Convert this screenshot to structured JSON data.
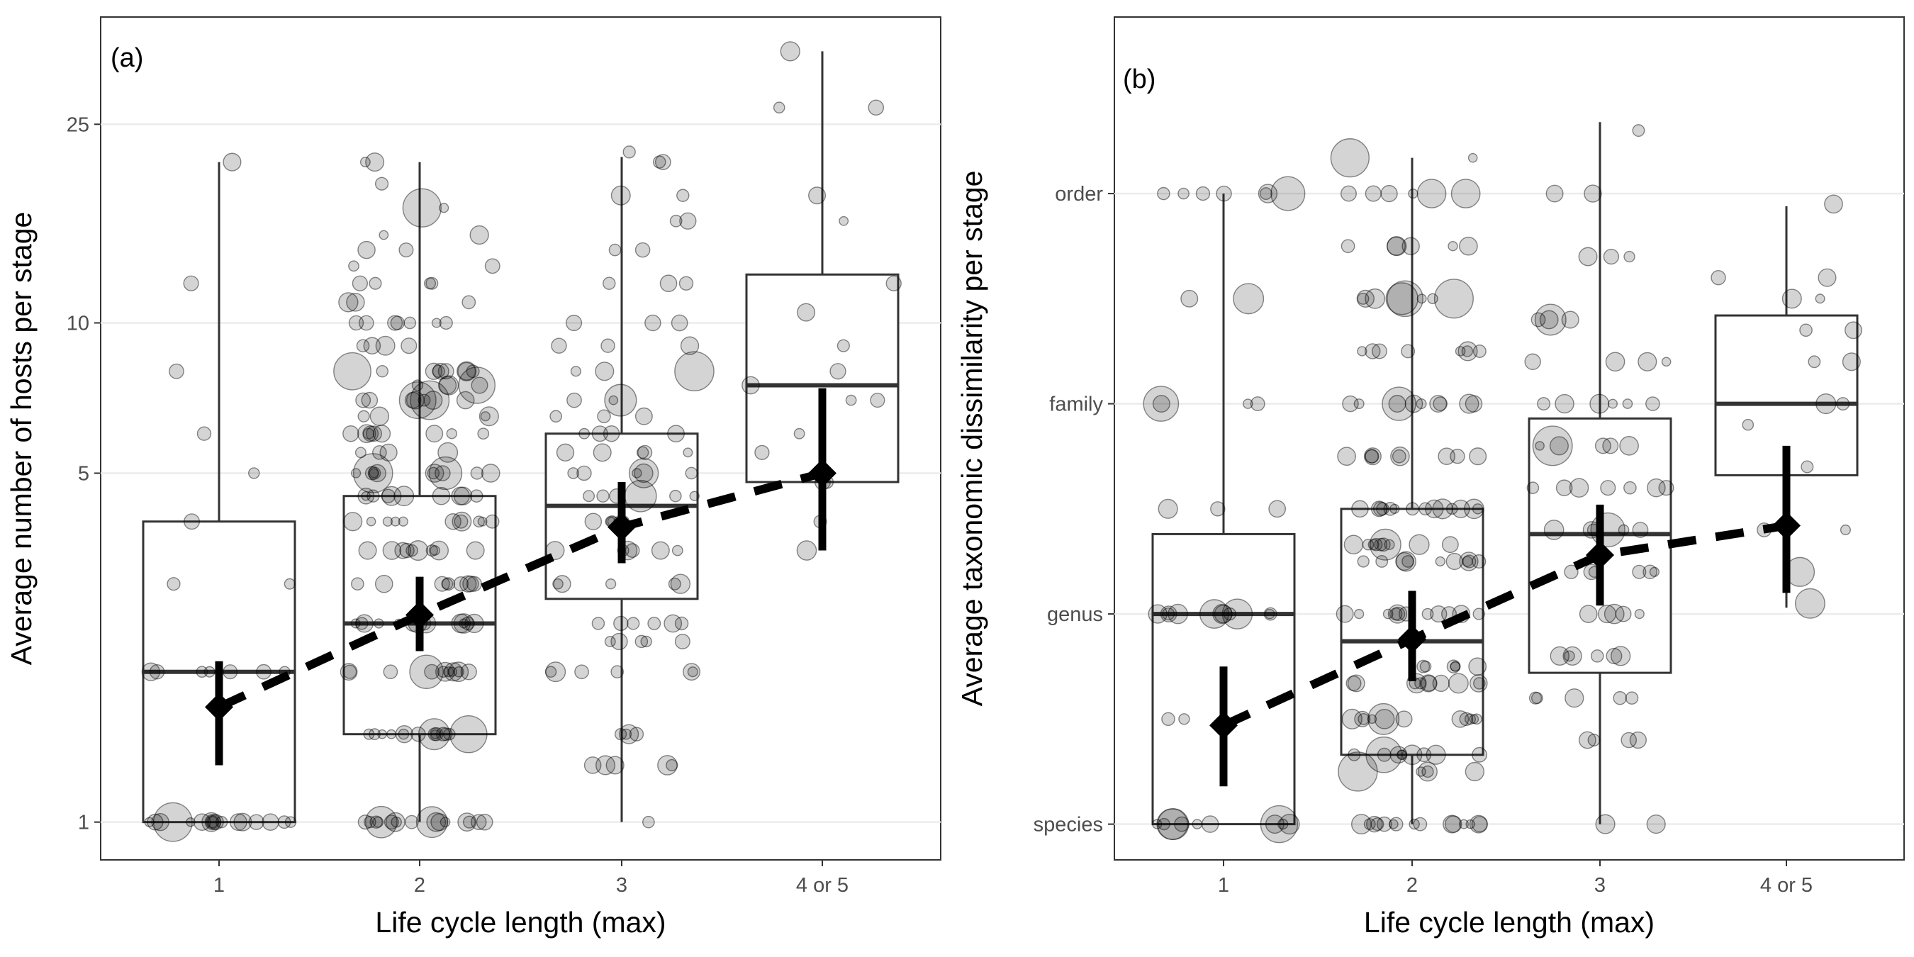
{
  "chart_data": [
    {
      "type": "box",
      "panel_label": "(a)",
      "xlabel": "Life cycle length (max)",
      "ylabel": "Average number of hosts per stage",
      "categories": [
        "1",
        "2",
        "3",
        "4 or 5"
      ],
      "y_scale": "log",
      "ylim": [
        0.84,
        41
      ],
      "y_ticks": [
        {
          "value": 1,
          "label": "1"
        },
        {
          "value": 5,
          "label": "5"
        },
        {
          "value": 10,
          "label": "10"
        },
        {
          "value": 25,
          "label": "25"
        }
      ],
      "grid": "horizontal",
      "boxes": [
        {
          "category": "1",
          "whisker_low": 1,
          "q1": 1,
          "median": 2,
          "q3": 4,
          "whisker_high": 21
        },
        {
          "category": "2",
          "whisker_low": 1,
          "q1": 1.5,
          "median": 2.5,
          "q3": 4.5,
          "whisker_high": 21
        },
        {
          "category": "3",
          "whisker_low": 1,
          "q1": 2.8,
          "median": 4.3,
          "q3": 6,
          "whisker_high": 21.5
        },
        {
          "category": "4 or 5",
          "whisker_low": 3.5,
          "q1": 4.8,
          "median": 7.5,
          "q3": 12.5,
          "whisker_high": 35
        }
      ],
      "trend": {
        "style": "dashed",
        "points": [
          {
            "category": "1",
            "estimate": 1.7,
            "ci_low": 1.3,
            "ci_high": 2.1
          },
          {
            "category": "2",
            "estimate": 2.6,
            "ci_low": 2.2,
            "ci_high": 3.1
          },
          {
            "category": "3",
            "estimate": 3.9,
            "ci_low": 3.3,
            "ci_high": 4.8
          },
          {
            "category": "4 or 5",
            "estimate": 5.0,
            "ci_low": 3.5,
            "ci_high": 7.4
          }
        ]
      },
      "jitter_points": {
        "1": [
          [
            1,
            6
          ],
          [
            1,
            5
          ],
          [
            1,
            4
          ],
          [
            1,
            3
          ],
          [
            2,
            2
          ],
          [
            2,
            3
          ],
          [
            2,
            2
          ],
          [
            3,
            2
          ],
          [
            4,
            1
          ],
          [
            5,
            1
          ],
          [
            6,
            1
          ],
          [
            8,
            1
          ],
          [
            12,
            1
          ],
          [
            21,
            1
          ]
        ],
        "2": [
          [
            1,
            14
          ],
          [
            1,
            3
          ],
          [
            1.5,
            12
          ],
          [
            1.5,
            3
          ],
          [
            2,
            10
          ],
          [
            2,
            3
          ],
          [
            2.5,
            14
          ],
          [
            3,
            9
          ],
          [
            3.5,
            10
          ],
          [
            4,
            11
          ],
          [
            4.5,
            10
          ],
          [
            5,
            10
          ],
          [
            5,
            2
          ],
          [
            5.5,
            4
          ],
          [
            6,
            7
          ],
          [
            6,
            2
          ],
          [
            6.5,
            4
          ],
          [
            7,
            6
          ],
          [
            7,
            3
          ],
          [
            7.5,
            5
          ],
          [
            8,
            6
          ],
          [
            8,
            3
          ],
          [
            9,
            4
          ],
          [
            10,
            5
          ],
          [
            10,
            2
          ],
          [
            11,
            3
          ],
          [
            12,
            4
          ],
          [
            13,
            2
          ],
          [
            14,
            2
          ],
          [
            15,
            2
          ],
          [
            17,
            2
          ],
          [
            19,
            1
          ],
          [
            21,
            2
          ]
        ],
        "3": [
          [
            1,
            1
          ],
          [
            1.3,
            5
          ],
          [
            1.5,
            4
          ],
          [
            2,
            6
          ],
          [
            2.3,
            5
          ],
          [
            2.5,
            6
          ],
          [
            3,
            5
          ],
          [
            3.5,
            6
          ],
          [
            4,
            6
          ],
          [
            4.5,
            6
          ],
          [
            5,
            6
          ],
          [
            5.5,
            5
          ],
          [
            6,
            4
          ],
          [
            6.5,
            3
          ],
          [
            7,
            3
          ],
          [
            8,
            3
          ],
          [
            9,
            3
          ],
          [
            10,
            3
          ],
          [
            12,
            3
          ],
          [
            14,
            2
          ],
          [
            16,
            2
          ],
          [
            18,
            2
          ],
          [
            21,
            2
          ],
          [
            22,
            1
          ]
        ],
        "4 or 5": [
          [
            3.5,
            1
          ],
          [
            4,
            1
          ],
          [
            4.8,
            2
          ],
          [
            5.5,
            1
          ],
          [
            6,
            1
          ],
          [
            7,
            2
          ],
          [
            7.5,
            1
          ],
          [
            8,
            1
          ],
          [
            9,
            1
          ],
          [
            10.5,
            1
          ],
          [
            12,
            1
          ],
          [
            16,
            1
          ],
          [
            18,
            1
          ],
          [
            27,
            2
          ],
          [
            35,
            1
          ]
        ]
      }
    },
    {
      "type": "box",
      "panel_label": "(b)",
      "xlabel": "Life cycle length (max)",
      "ylabel": "Average taxonomic dissimilarity per stage",
      "categories": [
        "1",
        "2",
        "3",
        "4 or 5"
      ],
      "ylim": [
        0.83,
        4.84
      ],
      "y_ticks": [
        {
          "value": 1,
          "label": "species"
        },
        {
          "value": 2,
          "label": "genus"
        },
        {
          "value": 3,
          "label": "family"
        },
        {
          "value": 4,
          "label": "order"
        }
      ],
      "grid": "horizontal",
      "boxes": [
        {
          "category": "1",
          "whisker_low": 1,
          "q1": 1,
          "median": 2,
          "q3": 2.38,
          "whisker_high": 4
        },
        {
          "category": "2",
          "whisker_low": 1,
          "q1": 1.33,
          "median": 1.87,
          "q3": 2.5,
          "whisker_high": 4.17
        },
        {
          "category": "3",
          "whisker_low": 1,
          "q1": 1.72,
          "median": 2.38,
          "q3": 2.93,
          "whisker_high": 4.34
        },
        {
          "category": "4 or 5",
          "whisker_low": 2.03,
          "q1": 2.66,
          "median": 3,
          "q3": 3.42,
          "whisker_high": 3.94
        }
      ],
      "trend": {
        "style": "dashed",
        "points": [
          {
            "category": "1",
            "estimate": 1.47,
            "ci_low": 1.18,
            "ci_high": 1.75
          },
          {
            "category": "2",
            "estimate": 1.88,
            "ci_low": 1.68,
            "ci_high": 2.11
          },
          {
            "category": "3",
            "estimate": 2.28,
            "ci_low": 2.04,
            "ci_high": 2.52
          },
          {
            "category": "4 or 5",
            "estimate": 2.42,
            "ci_low": 2.1,
            "ci_high": 2.8
          }
        ]
      },
      "jitter_points": {
        "1": [
          [
            1,
            8
          ],
          [
            1,
            3
          ],
          [
            1.5,
            2
          ],
          [
            2,
            9
          ],
          [
            2,
            2
          ],
          [
            2.5,
            3
          ],
          [
            3,
            3
          ],
          [
            3,
            1
          ],
          [
            3.5,
            2
          ],
          [
            4,
            5
          ],
          [
            4,
            2
          ]
        ],
        "2": [
          [
            1,
            12
          ],
          [
            1,
            3
          ],
          [
            1.25,
            5
          ],
          [
            1.33,
            10
          ],
          [
            1.5,
            12
          ],
          [
            1.67,
            11
          ],
          [
            1.75,
            6
          ],
          [
            2,
            12
          ],
          [
            2.25,
            11
          ],
          [
            2.33,
            10
          ],
          [
            2.5,
            14
          ],
          [
            2.75,
            9
          ],
          [
            3,
            10
          ],
          [
            3.25,
            8
          ],
          [
            3.5,
            8
          ],
          [
            3.75,
            6
          ],
          [
            4,
            6
          ],
          [
            4.17,
            2
          ]
        ],
        "3": [
          [
            1,
            2
          ],
          [
            1.4,
            4
          ],
          [
            1.6,
            5
          ],
          [
            1.8,
            6
          ],
          [
            2,
            5
          ],
          [
            2.2,
            6
          ],
          [
            2.4,
            6
          ],
          [
            2.6,
            7
          ],
          [
            2.8,
            6
          ],
          [
            3,
            6
          ],
          [
            3.2,
            4
          ],
          [
            3.4,
            4
          ],
          [
            3.7,
            3
          ],
          [
            4,
            2
          ],
          [
            4.3,
            1
          ]
        ],
        "4 or 5": [
          [
            2.05,
            1
          ],
          [
            2.2,
            1
          ],
          [
            2.4,
            2
          ],
          [
            2.7,
            1
          ],
          [
            2.9,
            1
          ],
          [
            3,
            2
          ],
          [
            3.2,
            2
          ],
          [
            3.35,
            2
          ],
          [
            3.5,
            2
          ],
          [
            3.6,
            2
          ],
          [
            3.95,
            1
          ]
        ]
      }
    }
  ]
}
